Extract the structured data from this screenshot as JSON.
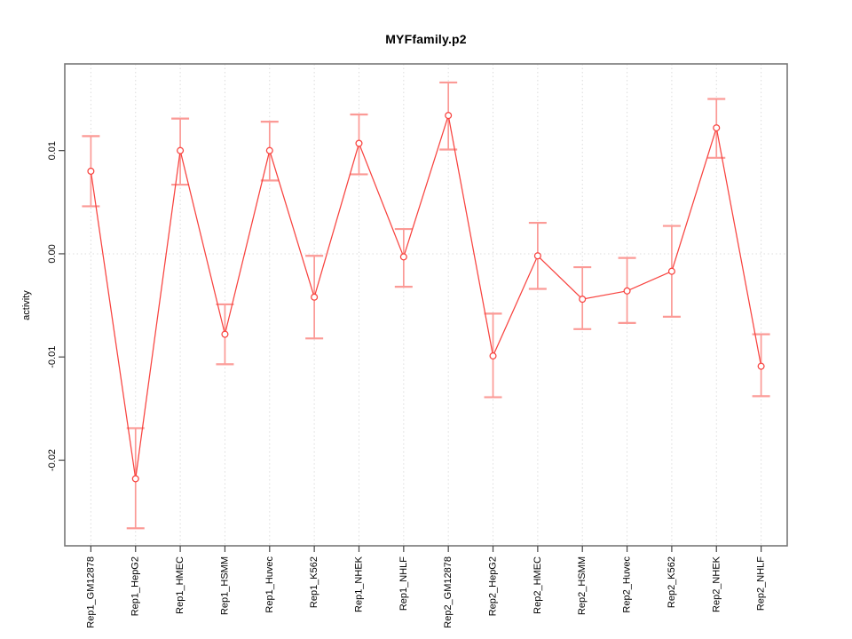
{
  "figure": {
    "background": "#ffffff"
  },
  "chart_data": {
    "type": "line",
    "title": "MYFfamily.p2",
    "xlabel": "",
    "ylabel": "activity",
    "legend_position": "none",
    "marker": "open-circle",
    "categories": [
      "Rep1_GM12878",
      "Rep1_HepG2",
      "Rep1_HMEC",
      "Rep1_HSMM",
      "Rep1_Huvec",
      "Rep1_K562",
      "Rep1_NHEK",
      "Rep1_NHLF",
      "Rep2_GM12878",
      "Rep2_HepG2",
      "Rep2_HMEC",
      "Rep2_HSMM",
      "Rep2_Huvec",
      "Rep2_K562",
      "Rep2_NHEK",
      "Rep2_NHLF"
    ],
    "series": [
      {
        "name": "activity",
        "values": [
          0.008,
          -0.0218,
          0.01,
          -0.0078,
          0.01,
          -0.0042,
          0.0107,
          -0.0003,
          0.0134,
          -0.0099,
          -0.0002,
          -0.0044,
          -0.0036,
          -0.0017,
          0.0122,
          -0.0109
        ],
        "ci_high": [
          0.0114,
          -0.0169,
          0.0131,
          -0.0049,
          0.0128,
          -0.0002,
          0.0135,
          0.0024,
          0.0166,
          -0.0058,
          0.003,
          -0.0013,
          -0.0004,
          0.0027,
          0.015,
          -0.0078
        ],
        "ci_low": [
          0.0046,
          -0.0266,
          0.0067,
          -0.0107,
          0.0071,
          -0.0082,
          0.0077,
          -0.0032,
          0.0101,
          -0.0139,
          -0.0034,
          -0.0073,
          -0.0067,
          -0.0061,
          0.0093,
          -0.0138
        ]
      }
    ],
    "ylim": [
      -0.0283,
      0.0184
    ],
    "yticks": {
      "values": [
        0.01,
        0,
        -0.01,
        -0.02
      ],
      "labels": [
        "0.01",
        "0.00",
        "-0.01",
        "-0.02"
      ]
    },
    "grid": {
      "vertical_per_category": true,
      "horizontal_at_zero": true,
      "style": "dotted"
    },
    "colors": {
      "series": "#f8433f",
      "error_bar": "#fb9a96",
      "grid": "#dcdcdc",
      "box": "#777777",
      "tick": "#444444",
      "text": "#000000",
      "background": "#ffffff"
    }
  }
}
